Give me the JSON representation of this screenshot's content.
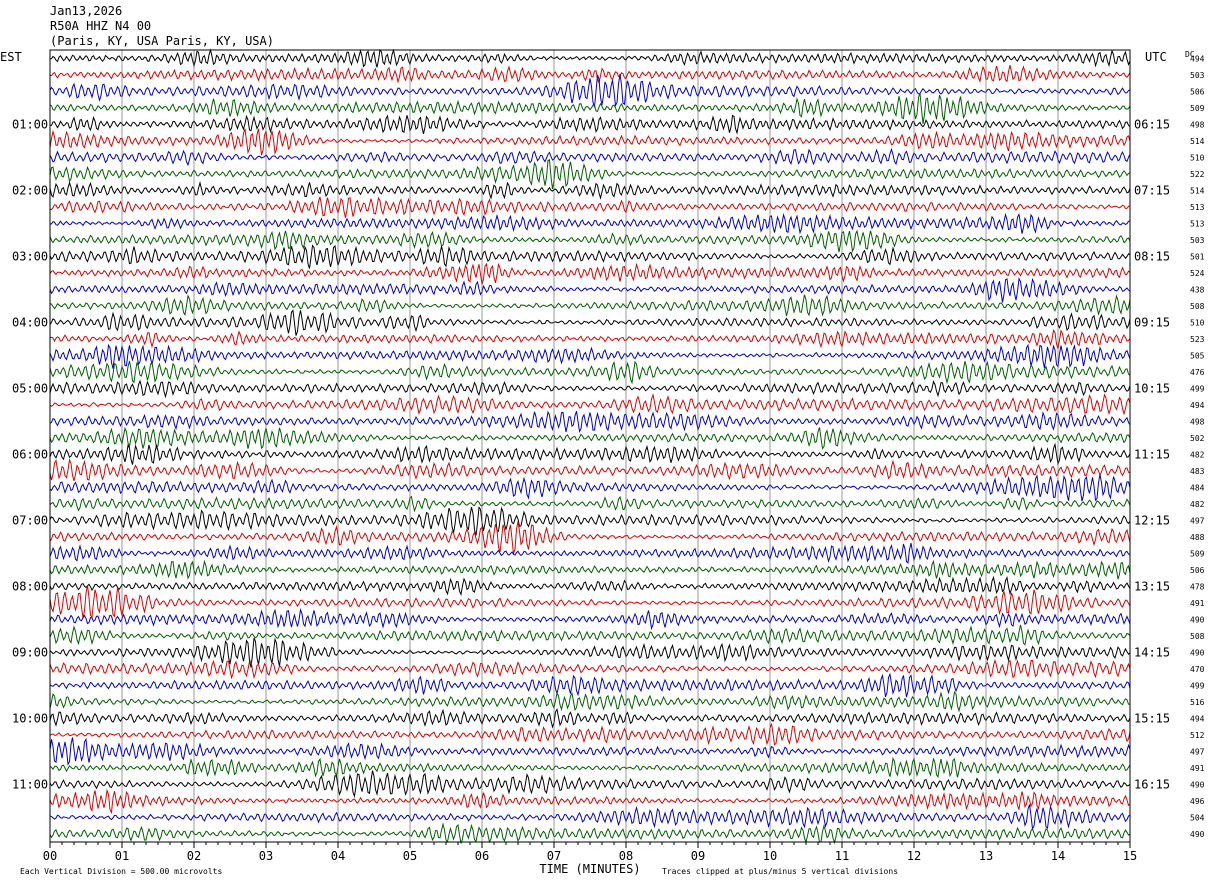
{
  "header": {
    "date": "Jan13,2026",
    "station": "R50A HHZ N4 00",
    "location": "(Paris, KY, USA Paris, KY, USA)"
  },
  "chart_data": {
    "type": "line",
    "title": "",
    "left_axis_label": "EST",
    "right_axis_label": "UTC",
    "dc_label": "DC",
    "xlabel": "TIME (MINUTES)",
    "x_ticks": [
      "00",
      "01",
      "02",
      "03",
      "04",
      "05",
      "06",
      "07",
      "08",
      "09",
      "10",
      "11",
      "12",
      "13",
      "14",
      "15"
    ],
    "xlim": [
      0,
      15
    ],
    "left_time_labels": [
      "01:00",
      "02:00",
      "03:00",
      "04:00",
      "05:00",
      "06:00",
      "07:00",
      "08:00",
      "09:00",
      "10:00",
      "11:00"
    ],
    "right_time_labels": [
      "06:15",
      "07:15",
      "08:15",
      "09:15",
      "10:15",
      "11:15",
      "12:15",
      "13:15",
      "14:15",
      "15:15",
      "16:15"
    ],
    "trace_count": 48,
    "trace_minutes": 15,
    "trace_colors": [
      "#000000",
      "#e00000",
      "#0000d0",
      "#006000"
    ],
    "dc_values": [
      494,
      503,
      506,
      509,
      498,
      514,
      510,
      522,
      514,
      513,
      513,
      503,
      501,
      524,
      438,
      508,
      510,
      523,
      505,
      476,
      499,
      494,
      498,
      502,
      482,
      483,
      484,
      482,
      497,
      488,
      509,
      506,
      478,
      491,
      490,
      508,
      490,
      470,
      499,
      516,
      494,
      512,
      497,
      491,
      490,
      496,
      504,
      490
    ],
    "vertical_division": "Each Vertical Division =  500.00 microvolts",
    "clip_note": "Traces clipped at plus/minus 5 vertical divisions"
  }
}
